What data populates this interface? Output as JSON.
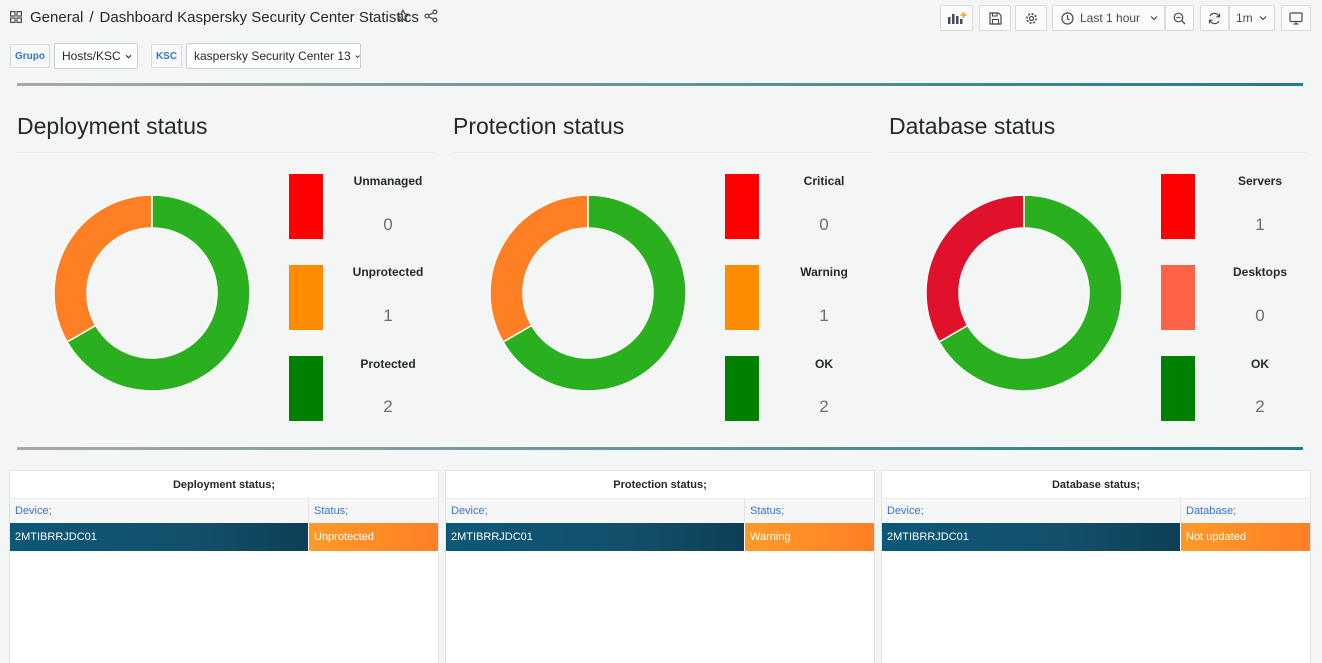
{
  "header": {
    "breadcrumb_folder": "General",
    "breadcrumb_separator": "/",
    "dashboard_title": "Dashboard Kaspersky Security Center Statistics",
    "time_range": "Last 1 hour",
    "refresh_interval": "1m"
  },
  "variables": [
    {
      "label": "Grupo",
      "value": "Hosts/KSC"
    },
    {
      "label": "KSC",
      "value": "kaspersky Security Center 13"
    }
  ],
  "colors": {
    "critical_red": "#ff0000",
    "warning_orange": "#ff8c00",
    "ok_green": "#008000",
    "desktops_salmon": "#ff6347",
    "row_teal": "#0b5878",
    "status_orange": "#ff8c2a"
  },
  "stat_panels": [
    {
      "title": "Deployment status",
      "chart_data": {
        "type": "pie",
        "values": [
          1,
          2
        ],
        "colors": [
          "#ff7f24",
          "#2ab01e"
        ]
      },
      "legend": [
        {
          "label": "Unmanaged",
          "value": "0",
          "color": "#ff0000"
        },
        {
          "label": "Unprotected",
          "value": "1",
          "color": "#ff8c00"
        },
        {
          "label": "Protected",
          "value": "2",
          "color": "#008000"
        }
      ]
    },
    {
      "title": "Protection status",
      "chart_data": {
        "type": "pie",
        "values": [
          1,
          2
        ],
        "colors": [
          "#ff7f24",
          "#2ab01e"
        ]
      },
      "legend": [
        {
          "label": "Critical",
          "value": "0",
          "color": "#ff0000"
        },
        {
          "label": "Warning",
          "value": "1",
          "color": "#ff8c00"
        },
        {
          "label": "OK",
          "value": "2",
          "color": "#008000"
        }
      ]
    },
    {
      "title": "Database status",
      "chart_data": {
        "type": "pie",
        "values": [
          1,
          2
        ],
        "colors": [
          "#e0112a",
          "#2ab01e"
        ]
      },
      "legend": [
        {
          "label": "Servers",
          "value": "1",
          "color": "#ff0000"
        },
        {
          "label": "Desktops",
          "value": "0",
          "color": "#ff6347"
        },
        {
          "label": "OK",
          "value": "2",
          "color": "#008000"
        }
      ]
    }
  ],
  "tables": [
    {
      "title": "Deployment status;",
      "col1": "Device;",
      "col2": "Status;",
      "device": "2MTIBRRJDC01",
      "status": "Unprotected"
    },
    {
      "title": "Protection status;",
      "col1": "Device;",
      "col2": "Status;",
      "device": "2MTIBRRJDC01",
      "status": "Warning"
    },
    {
      "title": "Database status;",
      "col1": "Device;",
      "col2": "Database;",
      "device": "2MTIBRRJDC01",
      "status": "Not updated"
    }
  ]
}
